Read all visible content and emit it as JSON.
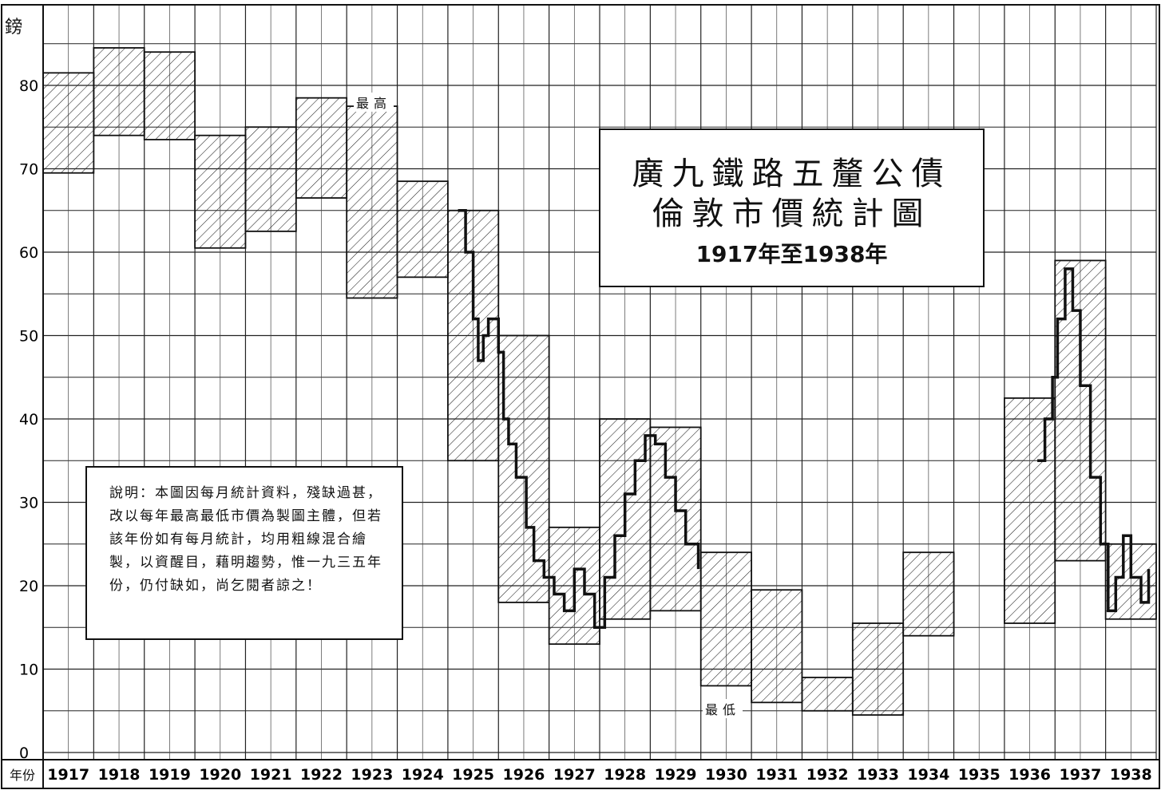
{
  "title": {
    "line1": "廣九鐵路五釐公債",
    "line2": "倫敦市價統計圖",
    "line3": "1917年至1938年"
  },
  "note": "說明：本圖因每月統計資料，殘缺過甚，改以每年最高最低市價為製圖主體，但若該年份如有每月統計，均用粗線混合繪製，以資醒目，藉明趨勢，惟一九三五年份，仍付缺如，尚乞閱者諒之！",
  "labels": {
    "high": "最高",
    "low": "最低",
    "unit": "鎊",
    "year_axis": "年份"
  },
  "chart_data": {
    "type": "area",
    "title": "廣九鐵路五釐公債 倫敦市價統計圖 1917年至1938年",
    "xlabel": "年份",
    "ylabel": "鎊",
    "ylim": [
      0,
      88
    ],
    "yticks": [
      0,
      10,
      20,
      30,
      40,
      50,
      60,
      70,
      80
    ],
    "grid": true,
    "categories": [
      "1917",
      "1918",
      "1919",
      "1920",
      "1921",
      "1922",
      "1923",
      "1924",
      "1925",
      "1926",
      "1927",
      "1928",
      "1929",
      "1930",
      "1931",
      "1932",
      "1933",
      "1934",
      "1935",
      "1936",
      "1937",
      "1938"
    ],
    "series": [
      {
        "name": "最高",
        "values": [
          81.5,
          84.5,
          84,
          74,
          75,
          78.5,
          77.5,
          68.5,
          65,
          50,
          27,
          40,
          39,
          24,
          19.5,
          9,
          15.5,
          24,
          null,
          42.5,
          59,
          25
        ]
      },
      {
        "name": "最低",
        "values": [
          69.5,
          74,
          73.5,
          60.5,
          62.5,
          66.5,
          54.5,
          57,
          35,
          18,
          13,
          16,
          17,
          8,
          6,
          5,
          4.5,
          14,
          null,
          15.5,
          23,
          16
        ]
      }
    ]
  },
  "colors": {
    "ink": "#111111",
    "hatch": "#222222",
    "background": "#ffffff"
  }
}
